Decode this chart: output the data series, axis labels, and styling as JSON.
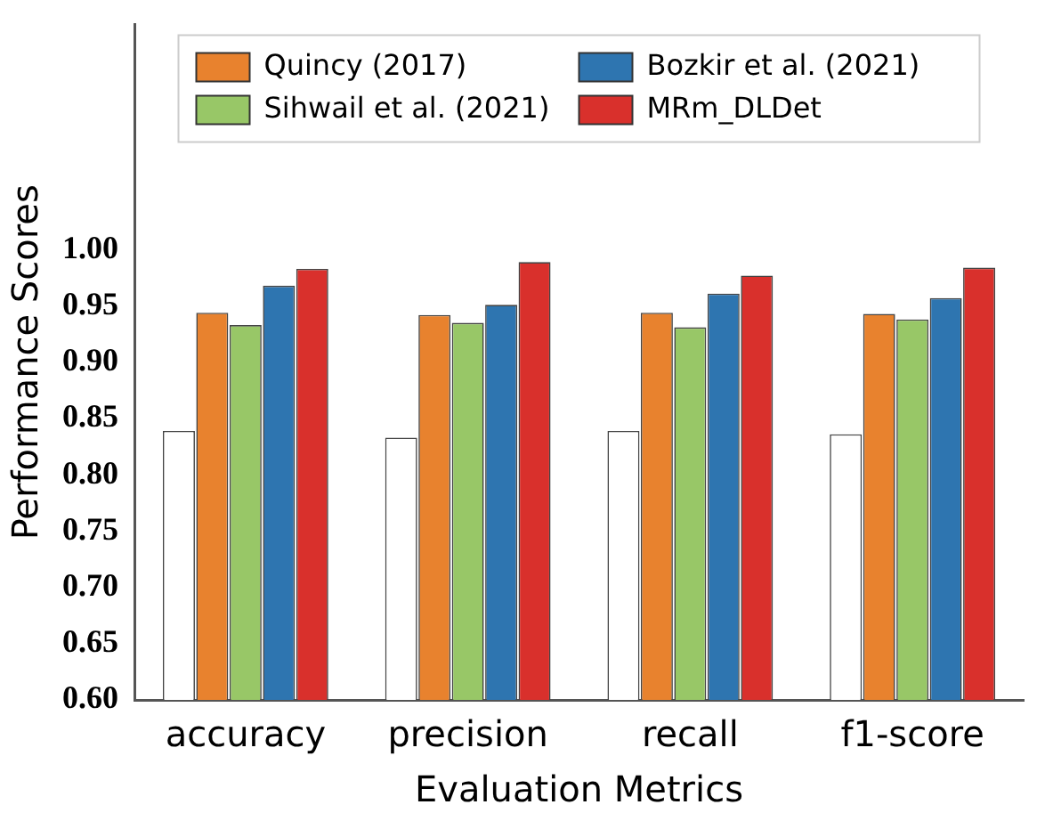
{
  "chart_data": {
    "type": "bar",
    "xlabel": "Evaluation Metrics",
    "ylabel": "Performance Scores",
    "categories": [
      "accuracy",
      "precision",
      "recall",
      "f1-score"
    ],
    "series": [
      {
        "color": "#ffffff",
        "values": [
          0.839,
          0.833,
          0.839,
          0.836
        ]
      },
      {
        "name": "Quincy (2017)",
        "color": "#e8822e",
        "values": [
          0.944,
          0.942,
          0.944,
          0.943
        ]
      },
      {
        "name": "Sihwail et al. (2021)",
        "color": "#98c767",
        "values": [
          0.933,
          0.935,
          0.931,
          0.938
        ]
      },
      {
        "name": "Bozkir et al. (2021)",
        "color": "#2e75b0",
        "values": [
          0.968,
          0.951,
          0.961,
          0.957
        ]
      },
      {
        "name": "MRm_DLDet",
        "color": "#d9302c",
        "values": [
          0.983,
          0.989,
          0.977,
          0.984
        ]
      }
    ],
    "ylim": [
      0.6,
      1.2
    ],
    "yticks": [
      {
        "value": 0.6,
        "label": "0.60"
      },
      0.65,
      {
        "value": 0.7,
        "label": "0.70"
      },
      0.75,
      {
        "value": 0.8,
        "label": "0.80"
      },
      0.85,
      {
        "value": 0.9,
        "label": "0.90"
      },
      0.95,
      {
        "value": 1.0,
        "label": "1.00"
      }
    ],
    "grid": false,
    "legend": "top"
  }
}
